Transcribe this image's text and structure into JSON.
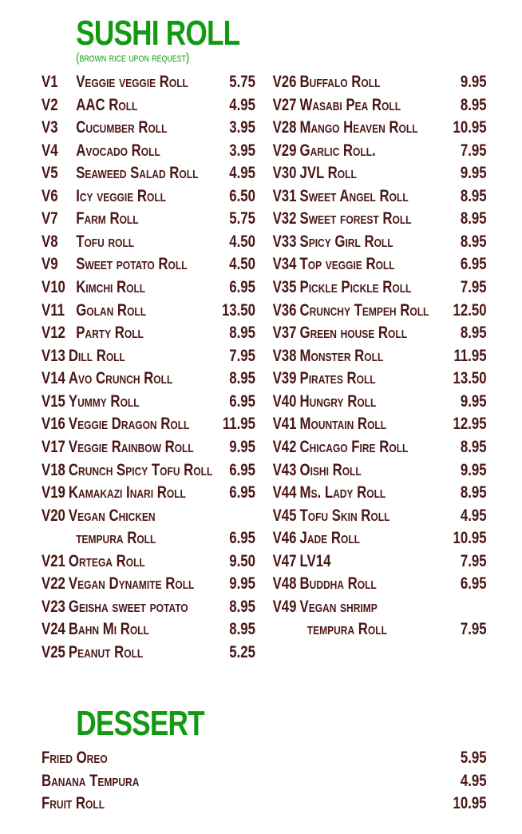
{
  "sushi": {
    "title": "SUSHI ROLL",
    "subtitle": "(brown rice upon request)",
    "left": [
      {
        "code": "V1",
        "name": "Veggie veggie Roll",
        "price": "5.75"
      },
      {
        "code": "V2",
        "name": "AAC Roll",
        "price": "4.95"
      },
      {
        "code": "V3",
        "name": "Cucumber Roll",
        "price": "3.95"
      },
      {
        "code": "V4",
        "name": "Avocado Roll",
        "price": "3.95"
      },
      {
        "code": "V5",
        "name": "Seaweed Salad Roll",
        "price": "4.95"
      },
      {
        "code": "V6",
        "name": "Icy veggie Roll",
        "price": "6.50"
      },
      {
        "code": "V7",
        "name": "Farm Roll",
        "price": "5.75"
      },
      {
        "code": "V8",
        "name": "Tofu roll",
        "price": "4.50"
      },
      {
        "code": "V9",
        "name": "Sweet potato Roll",
        "price": "4.50"
      },
      {
        "code": "V10",
        "name": "Kimchi Roll",
        "price": "6.95"
      },
      {
        "code": "V11",
        "name": "Golan Roll",
        "price": "13.50"
      },
      {
        "code": "V12",
        "name": "Party Roll",
        "price": "8.95"
      },
      {
        "code": "V13",
        "name": "Dill Roll",
        "price": "7.95"
      },
      {
        "code": "V14",
        "name": "Avo Crunch Roll",
        "price": "8.95"
      },
      {
        "code": "V15",
        "name": "Yummy Roll",
        "price": "6.95"
      },
      {
        "code": "V16",
        "name": "Veggie Dragon Roll",
        "price": "11.95"
      },
      {
        "code": "V17",
        "name": "Veggie Rainbow Roll",
        "price": "9.95"
      },
      {
        "code": "V18",
        "name": "Crunch Spicy Tofu Roll",
        "price": "6.95"
      },
      {
        "code": "V19",
        "name": "Kamakazi Inari Roll",
        "price": "6.95"
      },
      {
        "code": "V20",
        "name": "Vegan Chicken",
        "name2": "tempura Roll",
        "price": "6.95"
      },
      {
        "code": "V21",
        "name": "Ortega  Roll",
        "price": "9.50"
      },
      {
        "code": "V22",
        "name": "Vegan Dynamite Roll",
        "price": "9.95"
      },
      {
        "code": "V23",
        "name": "Geisha sweet potato",
        "price": "8.95"
      },
      {
        "code": "V24",
        "name": "Bahn Mi Roll",
        "price": "8.95"
      },
      {
        "code": "V25",
        "name": "Peanut Roll",
        "price": "5.25"
      }
    ],
    "right": [
      {
        "code": "V26",
        "name": "Buffalo Roll",
        "price": "9.95"
      },
      {
        "code": "V27",
        "name": "Wasabi Pea Roll",
        "price": "8.95"
      },
      {
        "code": "V28",
        "name": "Mango Heaven Roll",
        "price": "10.95"
      },
      {
        "code": "V29",
        "name": "Garlic Roll.",
        "price": "7.95"
      },
      {
        "code": "V30",
        "name": "JVL Roll",
        "price": "9.95"
      },
      {
        "code": "V31",
        "name": "Sweet Angel Roll",
        "price": "8.95"
      },
      {
        "code": "V32",
        "name": "Sweet forest Roll",
        "price": "8.95"
      },
      {
        "code": "V33",
        "name": "Spicy Girl Roll",
        "price": "8.95"
      },
      {
        "code": "V34",
        "name": "Top veggie Roll",
        "price": "6.95"
      },
      {
        "code": "V35",
        "name": "Pickle Pickle Roll",
        "price": "7.95"
      },
      {
        "code": "V36",
        "name": "Crunchy Tempeh Roll",
        "price": "12.50"
      },
      {
        "code": "V37",
        "name": "Green house Roll",
        "price": "8.95"
      },
      {
        "code": "V38",
        "name": "Monster Roll",
        "price": "11.95"
      },
      {
        "code": "V39",
        "name": "Pirates Roll",
        "price": "13.50"
      },
      {
        "code": "V40",
        "name": "Hungry Roll",
        "price": "9.95"
      },
      {
        "code": "V41",
        "name": "Mountain Roll",
        "price": "12.95"
      },
      {
        "code": "V42",
        "name": "Chicago Fire Roll",
        "price": "8.95"
      },
      {
        "code": "V43",
        "name": "Oishi Roll",
        "price": "9.95"
      },
      {
        "code": "V44",
        "name": "Ms. Lady Roll",
        "price": "8.95"
      },
      {
        "code": "V45",
        "name": "Tofu Skin Roll",
        "price": "4.95"
      },
      {
        "code": "V46",
        "name": "Jade Roll",
        "price": "10.95"
      },
      {
        "code": "V47",
        "name": "LV14",
        "price": "7.95"
      },
      {
        "code": "V48",
        "name": "Buddha Roll",
        "price": "6.95"
      },
      {
        "code": "V49",
        "name": "Vegan shrimp",
        "name2": "tempura Roll",
        "price": "7.95"
      }
    ]
  },
  "dessert": {
    "title": "DESSERT",
    "items": [
      {
        "name": "Fried Oreo",
        "price": "5.95"
      },
      {
        "name": "Banana Tempura",
        "price": "4.95"
      },
      {
        "name": "Fruit Roll",
        "price": "10.95"
      }
    ]
  },
  "colors": {
    "heading": "#129a12",
    "text": "#4a1616"
  }
}
